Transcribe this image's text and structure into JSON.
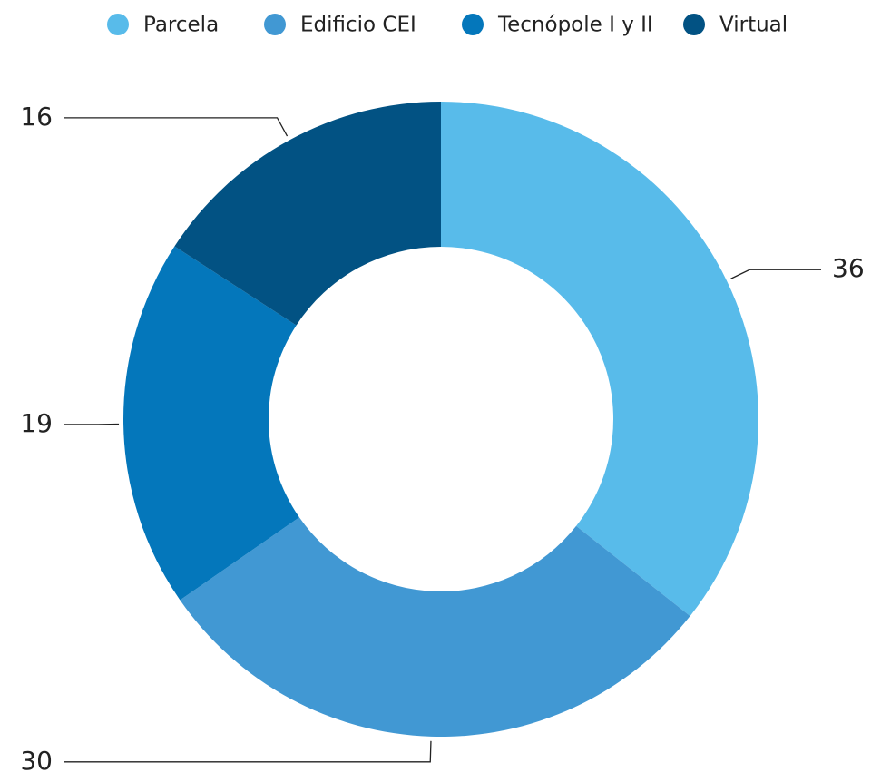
{
  "chart_data": {
    "type": "pie",
    "categories": [
      "Parcela",
      "Edificio CEI",
      "Tecnópole I y II",
      "Virtual"
    ],
    "values": [
      36,
      30,
      19,
      16
    ],
    "colors": [
      "#58bbea",
      "#4198d3",
      "#0477bb",
      "#025283"
    ],
    "donut": true,
    "legend": "top"
  }
}
